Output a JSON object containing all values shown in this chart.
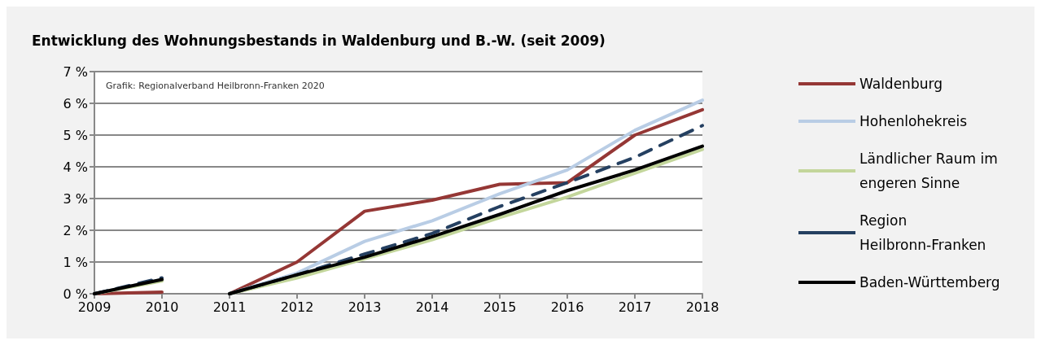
{
  "chart_data": {
    "type": "line",
    "title": "Entwicklung des Wohnungsbestands in Waldenburg und B.-W. (seit 2009)",
    "annotations": [
      "Grafik: Regionalverband Heilbronn-Franken 2020"
    ],
    "x": [
      2009,
      2010,
      2010.5,
      2011,
      2012,
      2013,
      2014,
      2015,
      2016,
      2017,
      2018
    ],
    "series": [
      {
        "name": "Waldenburg",
        "color": "#953735",
        "values": [
          0,
          0.05,
          null,
          0,
          1.0,
          2.6,
          2.95,
          3.45,
          3.5,
          5.0,
          5.8
        ]
      },
      {
        "name": "Hohenlohekreis",
        "color": "#b9cde5",
        "values": [
          0,
          0.45,
          null,
          0,
          0.65,
          1.65,
          2.3,
          3.15,
          3.9,
          5.15,
          6.1
        ]
      },
      {
        "name": "Ländlicher Raum im engeren Sinne",
        "color": "#c3d69b",
        "values": [
          0,
          0.4,
          null,
          0,
          0.5,
          1.1,
          1.7,
          2.4,
          3.05,
          3.8,
          4.55
        ]
      },
      {
        "name": "Region Heilbronn-Franken",
        "color": "#254061",
        "line_style": "dashed",
        "values": [
          0,
          0.5,
          null,
          0,
          0.6,
          1.25,
          1.9,
          2.75,
          3.5,
          4.3,
          5.3
        ]
      },
      {
        "name": "Baden-Württemberg",
        "color": "#000000",
        "values": [
          0,
          0.45,
          null,
          0,
          0.6,
          1.15,
          1.8,
          2.5,
          3.25,
          3.9,
          4.65
        ]
      }
    ],
    "xlim": [
      2009,
      2018
    ],
    "xticks": [
      2009,
      2010,
      2011,
      2012,
      2013,
      2014,
      2015,
      2016,
      2017,
      2018
    ],
    "ylim": [
      0,
      7
    ],
    "yticks": [
      {
        "value": 0,
        "label": "0 %"
      },
      {
        "value": 1,
        "label": "1 %"
      },
      {
        "value": 2,
        "label": "2 %"
      },
      {
        "value": 3,
        "label": "3 %"
      },
      {
        "value": 4,
        "label": "4 %"
      },
      {
        "value": 5,
        "label": "5 %"
      },
      {
        "value": 6,
        "label": "6 %"
      },
      {
        "value": 7,
        "label": "7 %"
      }
    ],
    "grid": "y",
    "legend": "right",
    "marker": "none",
    "line_style": "solid"
  }
}
